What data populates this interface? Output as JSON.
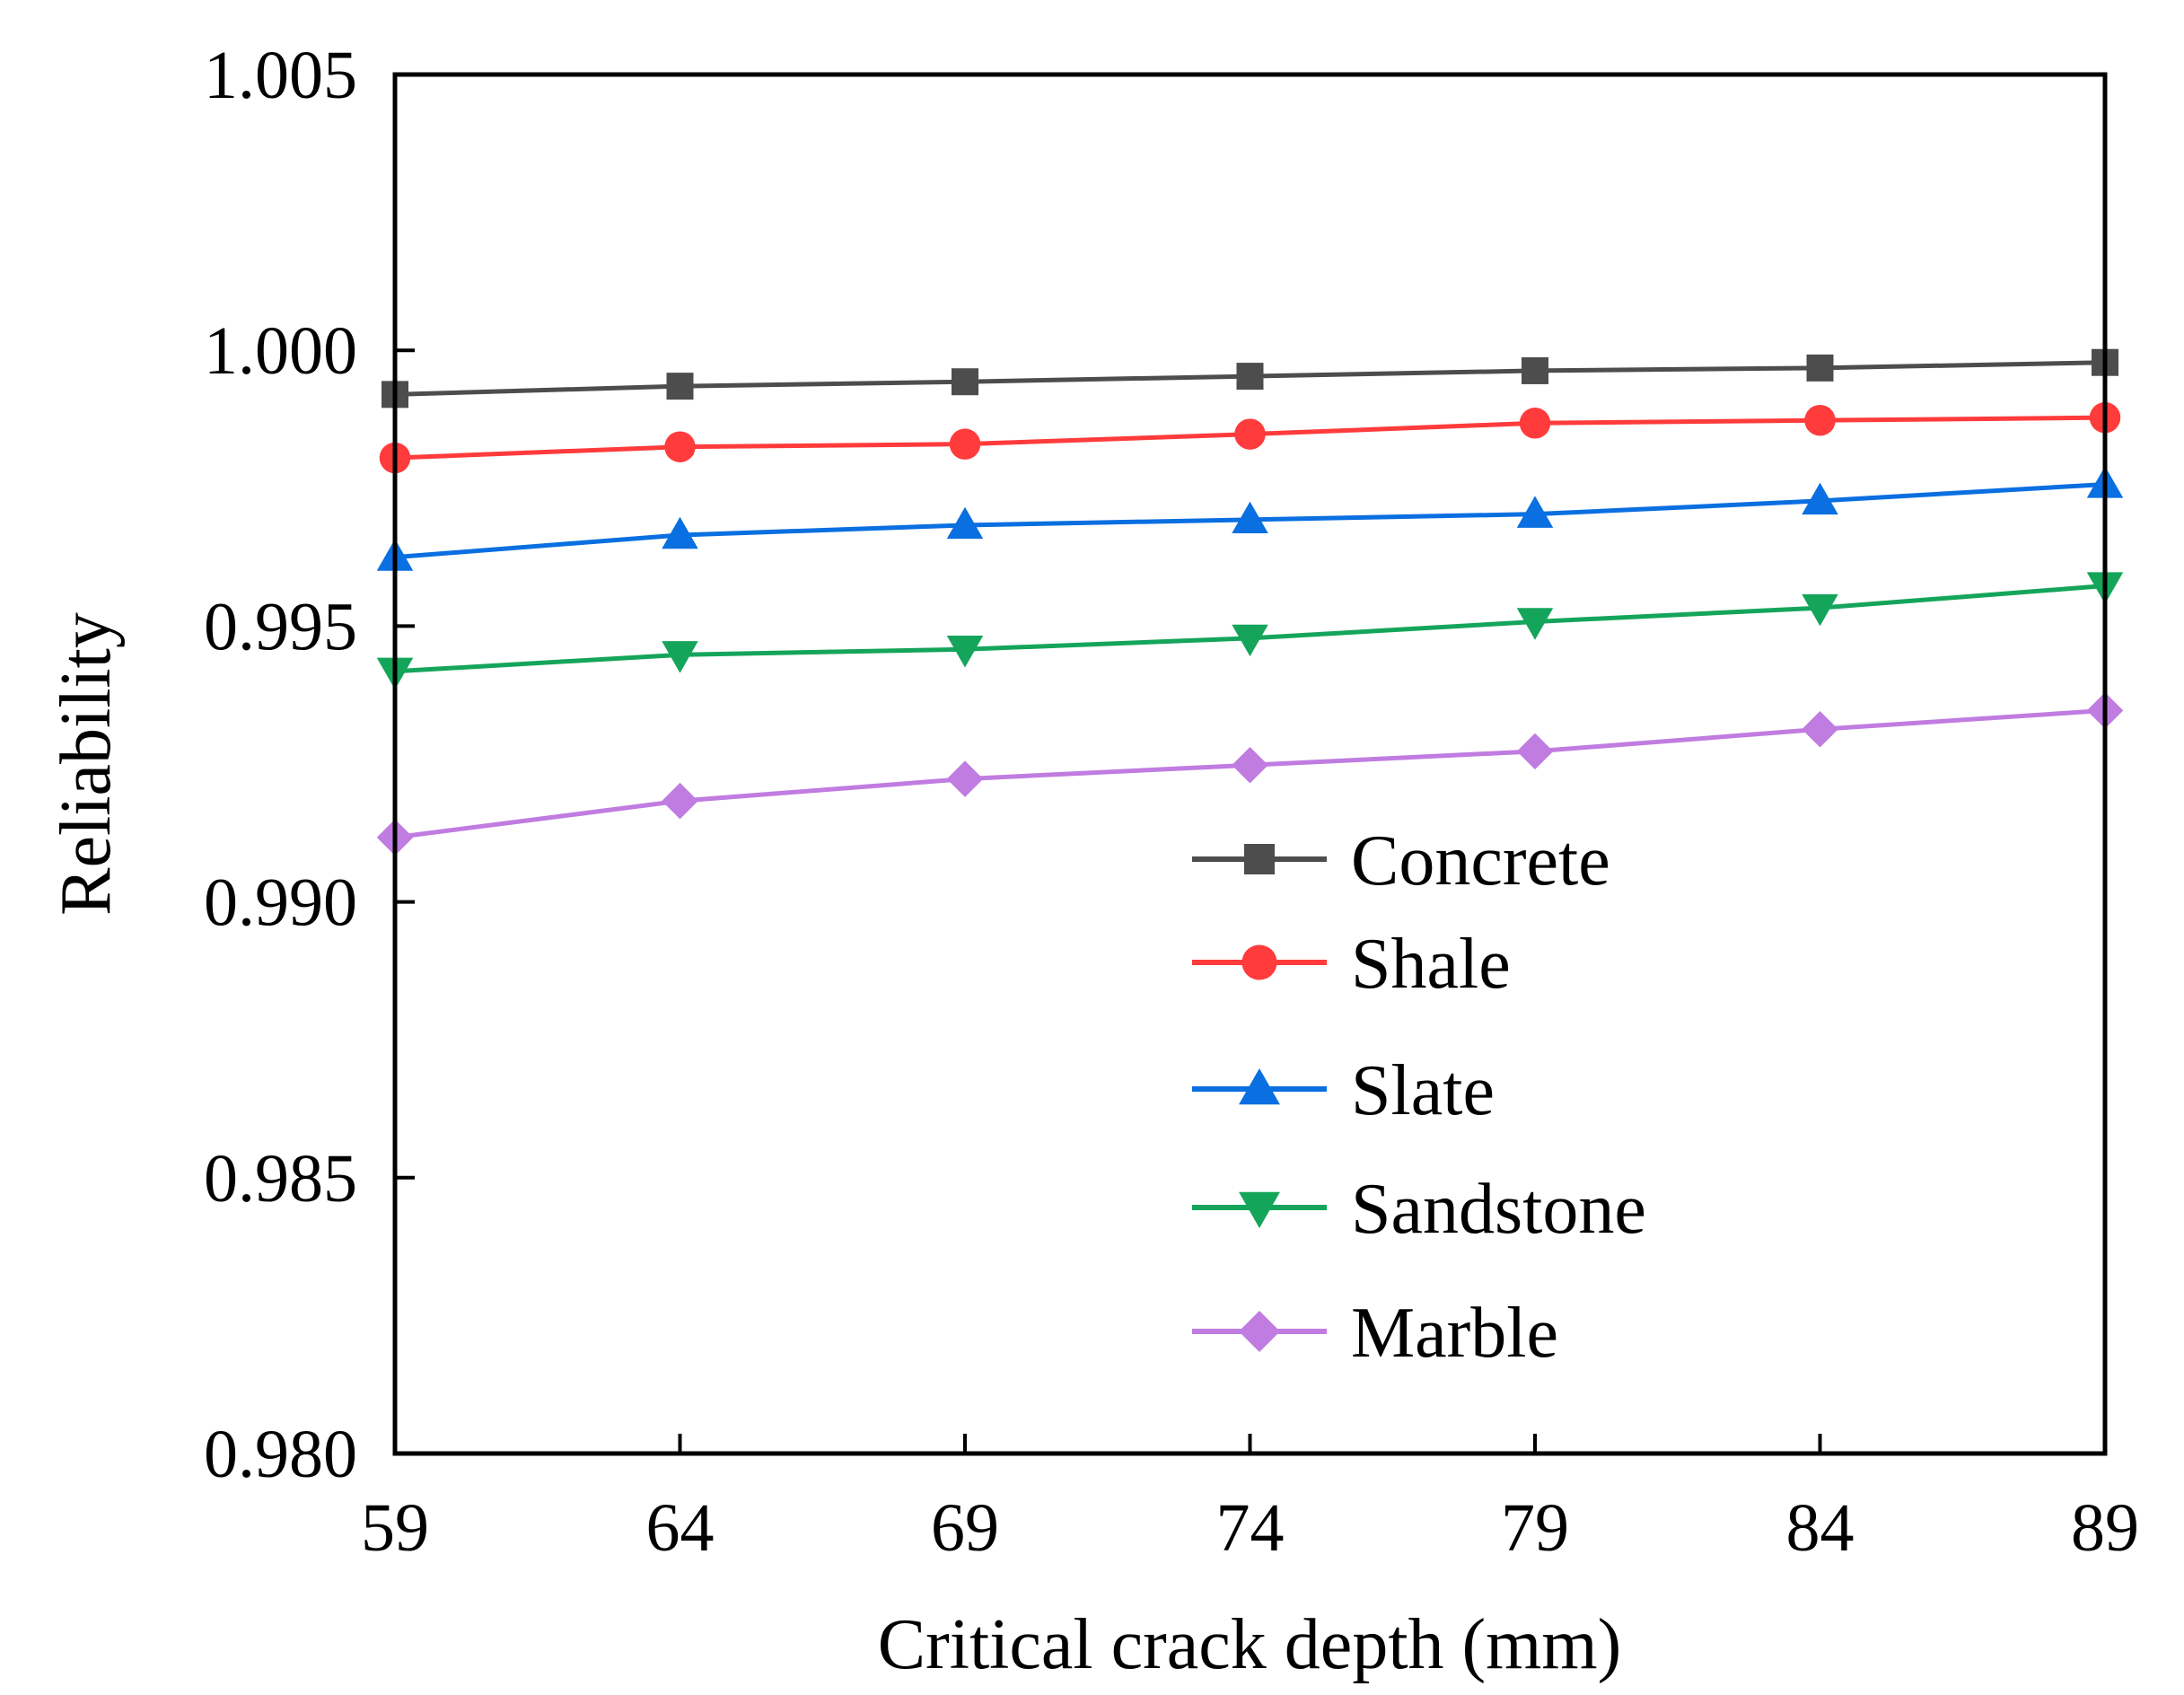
{
  "chart_data": {
    "type": "line",
    "title": "",
    "xlabel": "Critical crack depth (mm)",
    "ylabel": "Reliability",
    "x": [
      59,
      64,
      69,
      74,
      79,
      84,
      89
    ],
    "xlim": [
      59,
      89
    ],
    "ylim": [
      0.98,
      1.005
    ],
    "xticks": [
      "59",
      "64",
      "69",
      "74",
      "79",
      "84",
      "89"
    ],
    "yticks": [
      "0.980",
      "0.985",
      "0.990",
      "0.995",
      "1.000",
      "1.005"
    ],
    "ytick_values": [
      0.98,
      0.985,
      0.99,
      0.995,
      1.0,
      1.005
    ],
    "grid": false,
    "legend_position": "center-right",
    "series": [
      {
        "name": "Concrete",
        "marker": "square",
        "color": "#4d4d4d",
        "values": [
          0.9992,
          0.99935,
          0.99943,
          0.99953,
          0.99963,
          0.99968,
          0.99978
        ]
      },
      {
        "name": "Shale",
        "marker": "circle",
        "color": "#ff3b3b",
        "values": [
          0.99805,
          0.99825,
          0.9983,
          0.99848,
          0.99868,
          0.99873,
          0.99878
        ]
      },
      {
        "name": "Slate",
        "marker": "triangle-up",
        "color": "#0a6fe0",
        "values": [
          0.99625,
          0.99665,
          0.99683,
          0.99693,
          0.99703,
          0.99727,
          0.99757
        ]
      },
      {
        "name": "Sandstone",
        "marker": "triangle-down",
        "color": "#14a55a",
        "values": [
          0.99418,
          0.99448,
          0.99458,
          0.99478,
          0.99508,
          0.99533,
          0.99573
        ]
      },
      {
        "name": "Marble",
        "marker": "diamond",
        "color": "#c07ce0",
        "values": [
          0.99117,
          0.99183,
          0.99223,
          0.99248,
          0.99273,
          0.99313,
          0.99347
        ]
      }
    ]
  }
}
